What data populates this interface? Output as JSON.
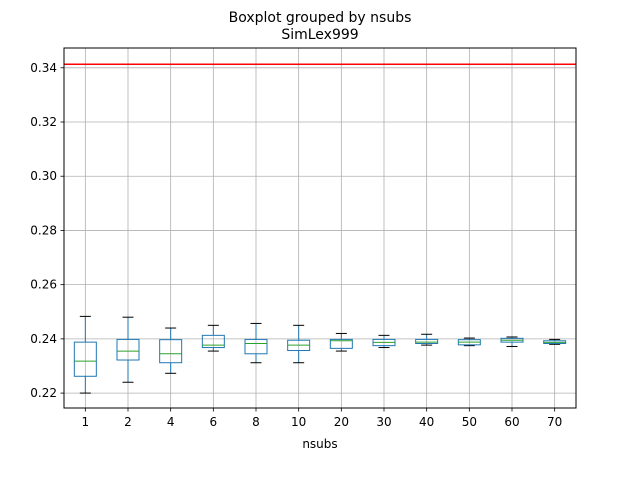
{
  "chart_data": {
    "type": "boxplot",
    "title": "Boxplot grouped by nsubs",
    "subtitle": "SimLex999",
    "xlabel": "nsubs",
    "ylabel": "",
    "categories": [
      "1",
      "2",
      "4",
      "6",
      "8",
      "10",
      "20",
      "30",
      "40",
      "50",
      "60",
      "70"
    ],
    "ylim": [
      0.2145,
      0.3473
    ],
    "yticks": [
      0.22,
      0.24,
      0.26,
      0.28,
      0.3,
      0.32,
      0.34
    ],
    "ytick_labels": [
      "0.22",
      "0.24",
      "0.26",
      "0.28",
      "0.30",
      "0.32",
      "0.34"
    ],
    "grid": true,
    "reference_line": {
      "value": 0.3413,
      "color": "#ff0000"
    },
    "box_color": "#1f77b4",
    "median_color": "#2ca02c",
    "boxes": [
      {
        "whisker_low": 0.22,
        "q1": 0.2262,
        "median": 0.2318,
        "q3": 0.2388,
        "whisker_high": 0.2483
      },
      {
        "whisker_low": 0.224,
        "q1": 0.2322,
        "median": 0.2355,
        "q3": 0.2398,
        "whisker_high": 0.248
      },
      {
        "whisker_low": 0.2273,
        "q1": 0.2312,
        "median": 0.2345,
        "q3": 0.2397,
        "whisker_high": 0.244
      },
      {
        "whisker_low": 0.2355,
        "q1": 0.2368,
        "median": 0.2377,
        "q3": 0.2413,
        "whisker_high": 0.245
      },
      {
        "whisker_low": 0.2312,
        "q1": 0.2345,
        "median": 0.2383,
        "q3": 0.2398,
        "whisker_high": 0.2457
      },
      {
        "whisker_low": 0.2312,
        "q1": 0.2357,
        "median": 0.2377,
        "q3": 0.2395,
        "whisker_high": 0.245
      },
      {
        "whisker_low": 0.2355,
        "q1": 0.2365,
        "median": 0.2393,
        "q3": 0.2398,
        "whisker_high": 0.242
      },
      {
        "whisker_low": 0.2368,
        "q1": 0.2375,
        "median": 0.2387,
        "q3": 0.2398,
        "whisker_high": 0.2413
      },
      {
        "whisker_low": 0.2377,
        "q1": 0.2383,
        "median": 0.2388,
        "q3": 0.2398,
        "whisker_high": 0.2417
      },
      {
        "whisker_low": 0.2375,
        "q1": 0.2378,
        "median": 0.2388,
        "q3": 0.2397,
        "whisker_high": 0.2403
      },
      {
        "whisker_low": 0.2372,
        "q1": 0.2388,
        "median": 0.2395,
        "q3": 0.2402,
        "whisker_high": 0.2407
      },
      {
        "whisker_low": 0.238,
        "q1": 0.2383,
        "median": 0.2387,
        "q3": 0.2393,
        "whisker_high": 0.2398
      }
    ]
  }
}
